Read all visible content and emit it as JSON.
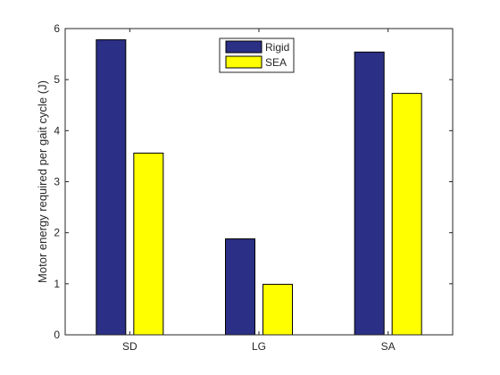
{
  "chart_data": {
    "type": "bar",
    "title": "",
    "xlabel": "",
    "ylabel": "Motor energy required per gait cycle (J)",
    "categories": [
      "SD",
      "LG",
      "SA"
    ],
    "series": [
      {
        "name": "Rigid",
        "values": [
          5.78,
          1.88,
          5.54
        ]
      },
      {
        "name": "SEA",
        "values": [
          3.56,
          0.99,
          4.73
        ]
      }
    ],
    "ylim": [
      0,
      6
    ],
    "yticks": [
      "0",
      "1",
      "2",
      "3",
      "4",
      "5",
      "6"
    ],
    "grid": false,
    "legend_position": "top-center",
    "colors": {
      "Rigid": "#2b2f85",
      "SEA": "#ffff00",
      "axis": "#262626",
      "bar_edge": "#000000"
    }
  }
}
